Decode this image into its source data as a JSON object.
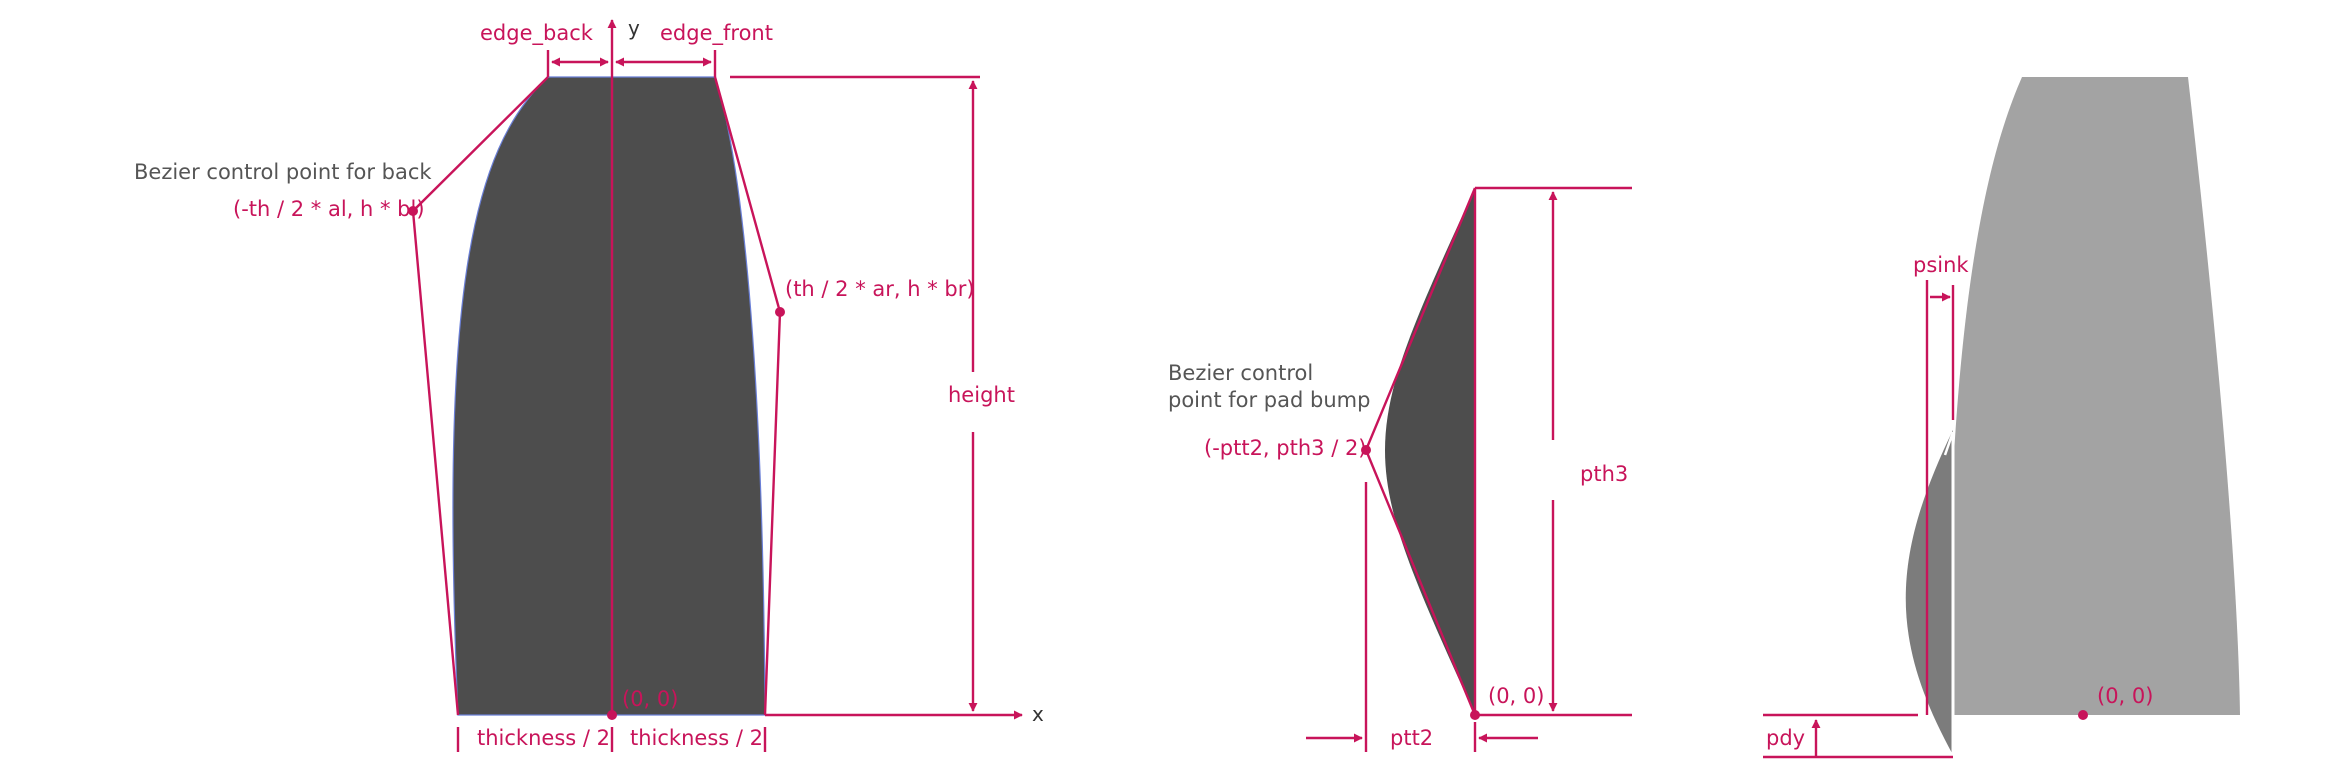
{
  "colors": {
    "accent": "#c8145a",
    "dark_shape": "#4d4d4d",
    "light_shape": "#a3a3a3",
    "medium_shape": "#7c7c7c",
    "text_gray": "#555555"
  },
  "diagram1": {
    "labels": {
      "edge_back": "edge_back",
      "edge_front": "edge_front",
      "y_axis": "y",
      "x_axis": "x",
      "back_caption": "Bezier control point for back",
      "back_point": "(-th / 2 * al, h * bl)",
      "front_point": "(th / 2 * ar, h * br)",
      "height": "height",
      "origin": "(0, 0)",
      "thickness_left": "thickness / 2",
      "thickness_right": "thickness / 2"
    }
  },
  "diagram2": {
    "labels": {
      "caption_line1": "Bezier control",
      "caption_line2": "point for pad bump",
      "control_point": "(-ptt2, pth3 / 2)",
      "pth3": "pth3",
      "origin": "(0, 0)",
      "ptt2": "ptt2"
    }
  },
  "diagram3": {
    "labels": {
      "psink": "psink",
      "pdy": "pdy",
      "origin": "(0, 0)"
    }
  }
}
